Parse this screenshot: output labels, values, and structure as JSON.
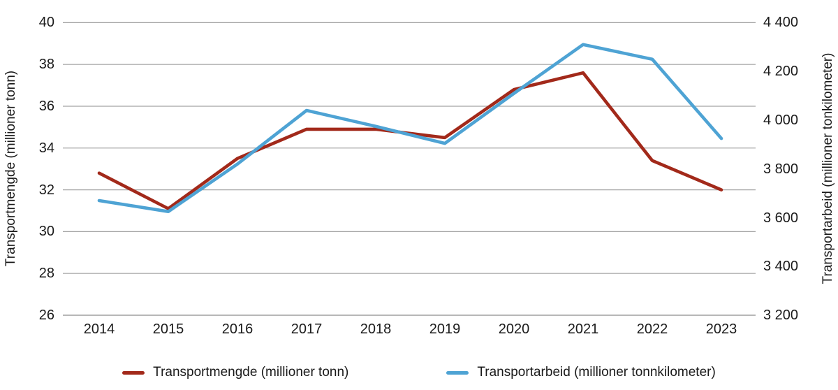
{
  "chart_data": {
    "type": "line",
    "title": "",
    "categories": [
      "2014",
      "2015",
      "2016",
      "2017",
      "2018",
      "2019",
      "2020",
      "2021",
      "2022",
      "2023"
    ],
    "series": [
      {
        "name": "Transportmengde (millioner tonn)",
        "axis": "left",
        "color": "#a2291a",
        "values": [
          32.8,
          31.1,
          33.5,
          34.9,
          34.9,
          34.5,
          36.8,
          37.6,
          33.4,
          32.0
        ]
      },
      {
        "name": "Transportarbeid (millioner tonnkilometer)",
        "axis": "right",
        "color": "#4ea3d4",
        "values": [
          3670,
          3625,
          3820,
          4040,
          3975,
          3905,
          4110,
          4310,
          4250,
          3925
        ]
      }
    ],
    "left_axis": {
      "label": "Transportmengde (millioner tonn)",
      "min": 26,
      "max": 40,
      "step": 2,
      "tick_labels": [
        "26",
        "28",
        "30",
        "32",
        "34",
        "36",
        "38",
        "40"
      ]
    },
    "right_axis": {
      "label": "Transportarbeid (millioner tonkilometer)",
      "min": 3200,
      "max": 4400,
      "step": 200,
      "tick_labels": [
        "3 200",
        "3 400",
        "3 600",
        "3 800",
        "4 000",
        "4 200",
        "4 400"
      ]
    },
    "grid": true,
    "legend_position": "bottom",
    "colors": {
      "grid": "#a3a3a3",
      "axis_line": "#8c8c8c",
      "text": "#1a1a1a",
      "background": "#ffffff"
    }
  }
}
